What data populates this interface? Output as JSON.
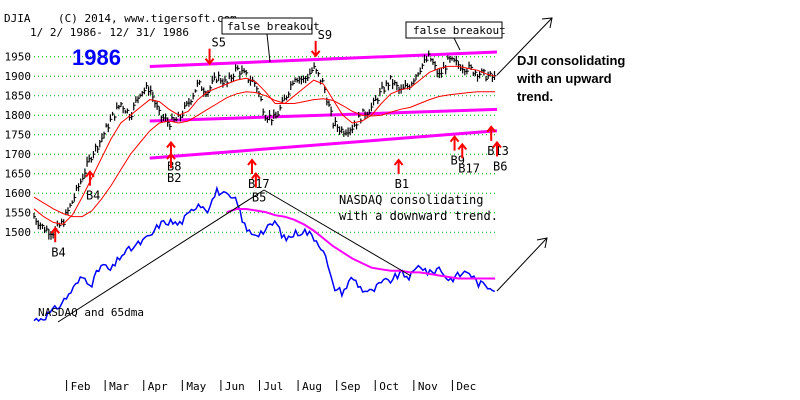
{
  "header": {
    "ticker": "DJIA",
    "copyright": "(C) 2014, www.tigersoft.com",
    "date_range": "1/ 2/ 1986- 12/ 31/ 1986",
    "year": "1986"
  },
  "colors": {
    "price": "#000000",
    "ma_red": "#ff0000",
    "channel": "#ff00ff",
    "nasdaq": "#0000ff",
    "nasdaq_ma": "#ff00ff",
    "signal": "#ff0000",
    "year_label": "#0000ff",
    "grid": "#00aa00"
  },
  "chart_data": [
    {
      "type": "line",
      "series_label": "DJIA",
      "yticks": [
        1500,
        1550,
        1600,
        1650,
        1700,
        1750,
        1800,
        1850,
        1900,
        1950
      ],
      "ylim": [
        1480,
        1980
      ],
      "xlim": [
        0,
        12
      ],
      "grid": true,
      "months": [
        "Feb",
        "Mar",
        "Apr",
        "May",
        "Jun",
        "Jul",
        "Aug",
        "Sep",
        "Oct",
        "Nov",
        "Dec"
      ],
      "x": [
        0.0,
        0.25,
        0.5,
        0.75,
        1.0,
        1.25,
        1.5,
        1.75,
        2.0,
        2.25,
        2.5,
        2.75,
        3.0,
        3.25,
        3.5,
        3.75,
        4.0,
        4.25,
        4.5,
        4.75,
        5.0,
        5.25,
        5.5,
        5.75,
        6.0,
        6.25,
        6.5,
        6.75,
        7.0,
        7.25,
        7.5,
        7.75,
        8.0,
        8.25,
        8.5,
        8.75,
        9.0,
        9.25,
        9.5,
        9.75,
        10.0,
        10.25,
        10.5,
        10.75,
        11.0,
        11.25,
        11.5,
        11.75,
        11.95
      ],
      "djia": [
        1540,
        1510,
        1500,
        1525,
        1580,
        1640,
        1700,
        1740,
        1790,
        1830,
        1800,
        1860,
        1870,
        1800,
        1780,
        1790,
        1830,
        1880,
        1860,
        1900,
        1880,
        1920,
        1900,
        1880,
        1800,
        1790,
        1840,
        1900,
        1890,
        1920,
        1880,
        1780,
        1760,
        1770,
        1800,
        1820,
        1860,
        1890,
        1860,
        1880,
        1920,
        1950,
        1900,
        1940,
        1930,
        1920,
        1910,
        1900,
        1895
      ],
      "ma_fast": [
        1560,
        1540,
        1525,
        1520,
        1545,
        1590,
        1640,
        1690,
        1740,
        1780,
        1800,
        1820,
        1840,
        1835,
        1815,
        1800,
        1810,
        1840,
        1860,
        1870,
        1880,
        1890,
        1895,
        1885,
        1860,
        1830,
        1830,
        1850,
        1870,
        1890,
        1880,
        1840,
        1800,
        1780,
        1785,
        1800,
        1830,
        1855,
        1865,
        1870,
        1890,
        1910,
        1920,
        1925,
        1925,
        1920,
        1915,
        1905,
        1900
      ],
      "ma_slow": [
        1590,
        1575,
        1560,
        1548,
        1540,
        1540,
        1555,
        1585,
        1620,
        1660,
        1700,
        1730,
        1760,
        1780,
        1785,
        1780,
        1785,
        1800,
        1815,
        1830,
        1845,
        1855,
        1860,
        1858,
        1850,
        1838,
        1830,
        1830,
        1835,
        1840,
        1842,
        1838,
        1825,
        1810,
        1800,
        1798,
        1800,
        1808,
        1815,
        1820,
        1830,
        1840,
        1848,
        1852,
        1855,
        1858,
        1860,
        1860,
        1860
      ],
      "channel_upper": [
        [
          3.0,
          1925
        ],
        [
          12.0,
          1962
        ]
      ],
      "channel_lower": [
        [
          3.0,
          1785
        ],
        [
          12.0,
          1815
        ]
      ],
      "channel_bottom": [
        [
          3.0,
          1690
        ],
        [
          12.0,
          1760
        ]
      ],
      "signals": [
        {
          "label": "B4",
          "x": 0.55,
          "y": 1505
        },
        {
          "label": "B4",
          "x": 1.45,
          "y": 1650
        },
        {
          "label": "B8",
          "x": 3.55,
          "y": 1725
        },
        {
          "label": "B2",
          "x": 3.55,
          "y": 1695
        },
        {
          "label": "S5",
          "x": 4.55,
          "y": 1945
        },
        {
          "label": "B17",
          "x": 5.65,
          "y": 1680
        },
        {
          "label": "B5",
          "x": 5.75,
          "y": 1645
        },
        {
          "label": "S9",
          "x": 7.3,
          "y": 1965
        },
        {
          "label": "B1",
          "x": 9.45,
          "y": 1680
        },
        {
          "label": "B9",
          "x": 10.9,
          "y": 1740
        },
        {
          "label": "B17",
          "x": 11.1,
          "y": 1720
        },
        {
          "label": "B13",
          "x": 11.85,
          "y": 1765
        },
        {
          "label": "B6",
          "x": 12.0,
          "y": 1725
        }
      ]
    },
    {
      "type": "line",
      "series_label": "NASDAQ and 65dma",
      "ylim": [
        300,
        410
      ],
      "x": [
        0.0,
        0.25,
        0.5,
        0.75,
        1.0,
        1.25,
        1.5,
        1.75,
        2.0,
        2.25,
        2.5,
        2.75,
        3.0,
        3.25,
        3.5,
        3.75,
        4.0,
        4.25,
        4.5,
        4.75,
        5.0,
        5.25,
        5.5,
        5.75,
        6.0,
        6.25,
        6.5,
        6.75,
        7.0,
        7.25,
        7.5,
        7.75,
        8.0,
        8.25,
        8.5,
        8.75,
        9.0,
        9.25,
        9.5,
        9.75,
        10.0,
        10.25,
        10.5,
        10.75,
        11.0,
        11.25,
        11.5,
        11.75,
        11.95
      ],
      "nasdaq": [
        316,
        318,
        322,
        328,
        336,
        344,
        340,
        352,
        348,
        358,
        362,
        366,
        370,
        378,
        380,
        378,
        384,
        392,
        388,
        400,
        396,
        393,
        374,
        372,
        374,
        380,
        368,
        372,
        374,
        370,
        362,
        338,
        334,
        344,
        336,
        334,
        340,
        342,
        346,
        344,
        352,
        346,
        350,
        342,
        345,
        348,
        340,
        338,
        337
      ],
      "nasdaq_ma": [
        null,
        null,
        null,
        null,
        null,
        null,
        null,
        null,
        null,
        null,
        null,
        null,
        null,
        null,
        null,
        null,
        null,
        null,
        null,
        null,
        386,
        388,
        388,
        387,
        386,
        384,
        383,
        381,
        378,
        374,
        369,
        364,
        360,
        356,
        353,
        350,
        349,
        348,
        348,
        347,
        347,
        346,
        345,
        344,
        343,
        343,
        343,
        343,
        343
      ]
    }
  ],
  "annotations": {
    "false_breakout_1": "false breakout",
    "false_breakout_2": "false breakout",
    "dji_note_1": "DJI consolidating",
    "dji_note_2": "with an upward",
    "dji_note_3": "trend.",
    "nasdaq_note_1": "NASDAQ consolidating",
    "nasdaq_note_2": "with a downward trend.",
    "nasdaq_legend": "NASDAQ and 65dma"
  }
}
